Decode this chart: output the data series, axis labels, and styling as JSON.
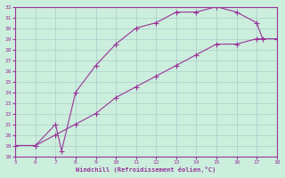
{
  "title": "",
  "xlabel": "Windchill (Refroidissement éolien,°C)",
  "ylabel": "",
  "xlim": [
    5,
    18
  ],
  "ylim": [
    18,
    32
  ],
  "xticks": [
    5,
    6,
    7,
    8,
    9,
    10,
    11,
    12,
    13,
    14,
    15,
    16,
    17,
    18
  ],
  "yticks": [
    18,
    19,
    20,
    21,
    22,
    23,
    24,
    25,
    26,
    27,
    28,
    29,
    30,
    31,
    32
  ],
  "background_color": "#cceedd",
  "grid_color": "#aacccc",
  "line_color": "#993399",
  "line1_x": [
    5,
    6,
    7,
    8,
    9,
    10,
    11,
    12,
    13,
    14,
    15,
    16,
    17,
    18
  ],
  "line1_y": [
    19.0,
    19.0,
    20.0,
    21.0,
    22.0,
    23.5,
    24.5,
    25.5,
    26.5,
    27.5,
    28.5,
    28.5,
    29.0,
    29.0
  ],
  "line2_x": [
    5,
    6,
    7,
    7.3,
    8,
    9,
    10,
    11,
    12,
    13,
    14,
    15,
    16,
    17,
    17.3,
    18
  ],
  "line2_y": [
    19.0,
    19.0,
    21.0,
    18.5,
    24.0,
    26.5,
    28.5,
    30.0,
    30.5,
    31.5,
    31.5,
    32.0,
    31.5,
    30.5,
    29.0,
    29.0
  ],
  "marker": "+",
  "markersize": 4,
  "linewidth": 0.8
}
